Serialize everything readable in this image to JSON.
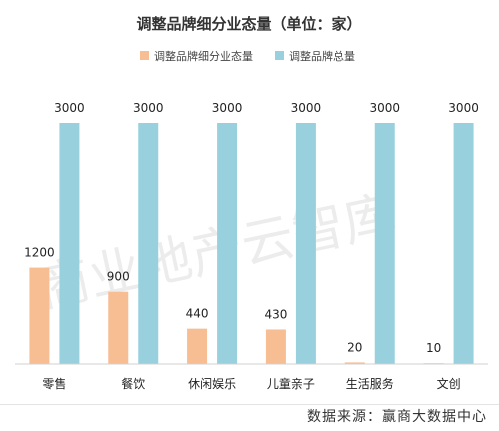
{
  "chart_data": {
    "type": "bar",
    "title": "调整品牌细分业态量（单位：家）",
    "categories": [
      "零售",
      "餐饮",
      "休闲娱乐",
      "儿童亲子",
      "生活服务",
      "文创"
    ],
    "series": [
      {
        "name": "调整品牌细分业态量",
        "color": "#f8be93",
        "values": [
          1200,
          900,
          440,
          430,
          20,
          10
        ]
      },
      {
        "name": "调整品牌总量",
        "color": "#99d0de",
        "values": [
          3000,
          3000,
          3000,
          3000,
          3000,
          3000
        ]
      }
    ],
    "ylim": [
      0,
      3000
    ],
    "grid": false,
    "legend_position": "top"
  },
  "watermark": "商业地产云智库",
  "source_note": "数据来源：赢商大数据中心"
}
